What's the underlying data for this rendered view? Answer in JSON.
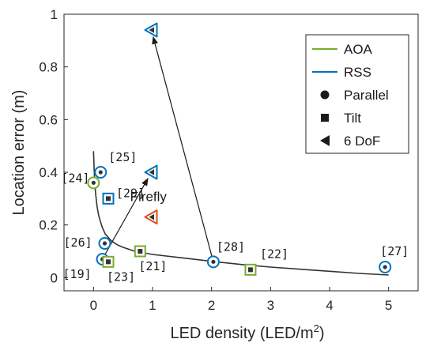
{
  "chart_data": {
    "type": "scatter",
    "xlabel": "LED density (LED/m",
    "xlabel_sup": "2",
    "xlabel_suffix": ")",
    "ylabel": "Location error (m)",
    "xlim": [
      -0.5,
      5.5
    ],
    "ylim": [
      -0.05,
      1.0
    ],
    "xticks": [
      0,
      1,
      2,
      3,
      4,
      5
    ],
    "yticks": [
      0,
      0.2,
      0.4,
      0.6,
      0.8,
      1
    ],
    "ytick_labels": [
      "0",
      "0.2",
      "0.4",
      "0.6",
      "0.8",
      "1"
    ],
    "grid": false,
    "colors": {
      "aoa": "#77ac30",
      "rss": "#0072bd",
      "firefly": "#d95319",
      "marker_fill": "#333333",
      "curve": "#333333"
    },
    "legend": {
      "placement": "top-right",
      "entries": [
        {
          "label": "AOA",
          "kind": "line",
          "color": "#77ac30"
        },
        {
          "label": "RSS",
          "kind": "line",
          "color": "#0072bd"
        },
        {
          "label": "Parallel",
          "kind": "circle"
        },
        {
          "label": "Tilt",
          "kind": "square"
        },
        {
          "label": "6 DoF",
          "kind": "triangle"
        }
      ]
    },
    "points": [
      {
        "ref": "[24]",
        "x": 0.0,
        "y": 0.36,
        "marker": "circle",
        "method": "aoa"
      },
      {
        "ref": "[25]",
        "x": 0.12,
        "y": 0.4,
        "marker": "circle",
        "method": "rss"
      },
      {
        "ref": "[26]",
        "x": 0.19,
        "y": 0.13,
        "marker": "circle",
        "method": "rss"
      },
      {
        "ref": "[19]",
        "x": 0.15,
        "y": 0.07,
        "marker": "circle",
        "method": "rss"
      },
      {
        "ref": "[29]",
        "x": 0.25,
        "y": 0.3,
        "marker": "square",
        "method": "rss"
      },
      {
        "ref": "[23]",
        "x": 0.25,
        "y": 0.06,
        "marker": "square",
        "method": "aoa"
      },
      {
        "ref": "[21]",
        "x": 0.79,
        "y": 0.1,
        "marker": "square",
        "method": "aoa"
      },
      {
        "ref": "[28]",
        "x": 2.03,
        "y": 0.06,
        "marker": "circle",
        "method": "rss"
      },
      {
        "ref": "[22]",
        "x": 2.66,
        "y": 0.03,
        "marker": "square",
        "method": "aoa"
      },
      {
        "ref": "[27]",
        "x": 4.94,
        "y": 0.04,
        "marker": "circle",
        "method": "rss"
      },
      {
        "ref": "",
        "x": 0.98,
        "y": 0.94,
        "marker": "triangle",
        "method": "rss"
      },
      {
        "ref": "",
        "x": 0.98,
        "y": 0.4,
        "marker": "triangle",
        "method": "rss"
      },
      {
        "ref": "",
        "x": 0.98,
        "y": 0.23,
        "marker": "triangle",
        "method": "firefly"
      }
    ],
    "arrows": [
      {
        "from": [
          0.15,
          0.07
        ],
        "to": [
          0.98,
          0.4
        ]
      },
      {
        "from": [
          2.03,
          0.06
        ],
        "to": [
          0.98,
          0.94
        ]
      }
    ],
    "annotation": {
      "text": "Firefly",
      "x": 0.62,
      "y": 0.29
    },
    "curve": {
      "x": [
        0.0,
        0.02,
        0.04,
        0.06,
        0.08,
        0.1,
        0.15,
        0.2,
        0.3,
        0.4,
        0.5,
        0.7,
        1.0,
        1.5,
        2.0,
        2.5,
        3.0,
        3.5,
        4.0,
        4.5,
        5.0
      ],
      "y": [
        0.48,
        0.36,
        0.31,
        0.27,
        0.245,
        0.225,
        0.19,
        0.165,
        0.14,
        0.125,
        0.115,
        0.1,
        0.088,
        0.075,
        0.062,
        0.05,
        0.04,
        0.032,
        0.024,
        0.016,
        0.01
      ]
    }
  }
}
